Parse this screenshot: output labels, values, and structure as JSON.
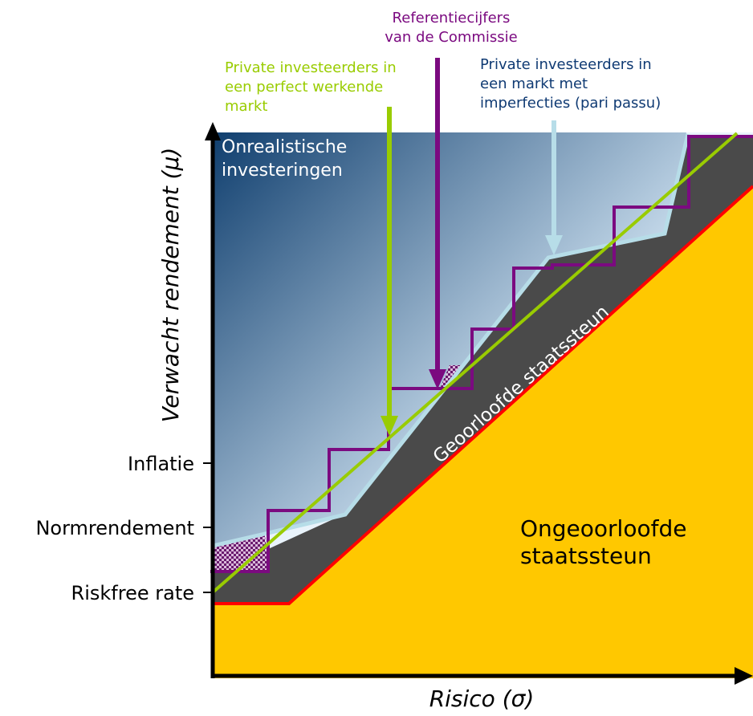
{
  "annotations": {
    "commission": [
      "Referentiecijfers",
      "van de Commissie"
    ],
    "perfect_market": [
      "Private investeerders in",
      "een perfect werkende",
      "markt"
    ],
    "imperfect_market": [
      "Private investeerders in",
      "een markt met",
      "imperfecties (pari passu)"
    ]
  },
  "regions": {
    "unrealistic": [
      "Onrealistische",
      "investeringen"
    ],
    "permitted_aid": "Geoorloofde staatssteun",
    "forbidden_aid": [
      "Ongeoorloofde",
      "staatssteun"
    ]
  },
  "axes": {
    "y_label": "Verwacht rendement (μ)",
    "x_label": "Risico (σ)",
    "y_ticks": [
      "Inflatie",
      "Normrendement",
      "Riskfree rate"
    ]
  },
  "colors": {
    "sky_dark": "#0f3e6e",
    "sky_light": "#e9f3fb",
    "perfect_market": "#99cc00",
    "commission": "#7b0a80",
    "imperfect_market": "#b7dde8",
    "permitted_aid_band": "#4a4a4a",
    "forbidden_aid": "#ffc800",
    "boundary": "#ff0000",
    "imperfect_text": "#0f3a73"
  }
}
